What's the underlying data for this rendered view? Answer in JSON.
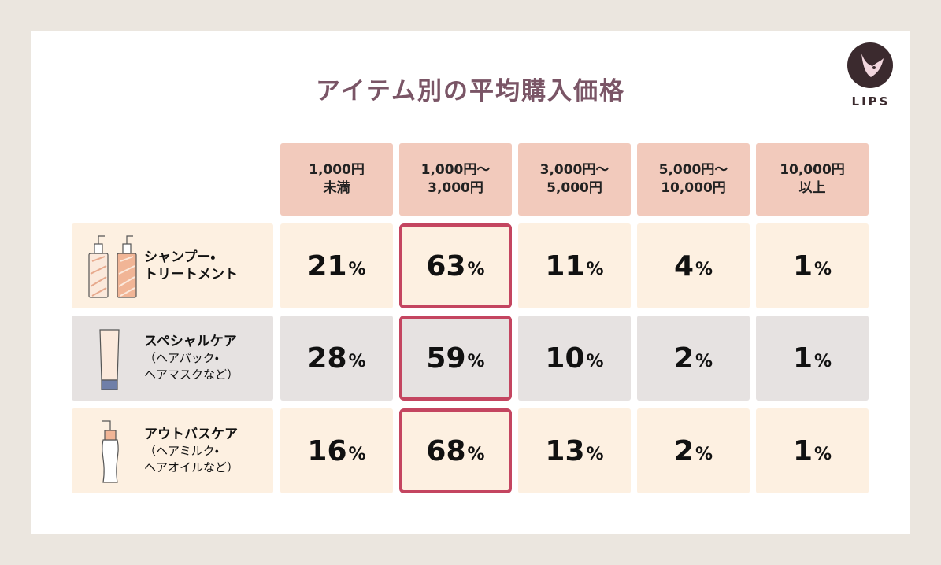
{
  "title": "アイテム別の平均購入価格",
  "logo": "LIPS",
  "table": {
    "unit": "%",
    "headers": [
      [
        "1,000円",
        "未満"
      ],
      [
        "1,000円〜",
        "3,000円"
      ],
      [
        "3,000円〜",
        "5,000円"
      ],
      [
        "5,000円〜",
        "10,000円"
      ],
      [
        "10,000円",
        "以上"
      ]
    ],
    "rows": [
      {
        "name": [
          "シャンプー・",
          "トリートメント"
        ],
        "sub": [],
        "values": [
          21,
          63,
          11,
          4,
          1
        ]
      },
      {
        "name": [
          "スペシャルケア"
        ],
        "sub": [
          "（ヘアパック・",
          "ヘアマスクなど）"
        ],
        "values": [
          28,
          59,
          10,
          2,
          1
        ]
      },
      {
        "name": [
          "アウトバスケア"
        ],
        "sub": [
          "（ヘアミルク・",
          "ヘアオイルなど）"
        ],
        "values": [
          16,
          68,
          13,
          2,
          1
        ]
      }
    ]
  }
}
